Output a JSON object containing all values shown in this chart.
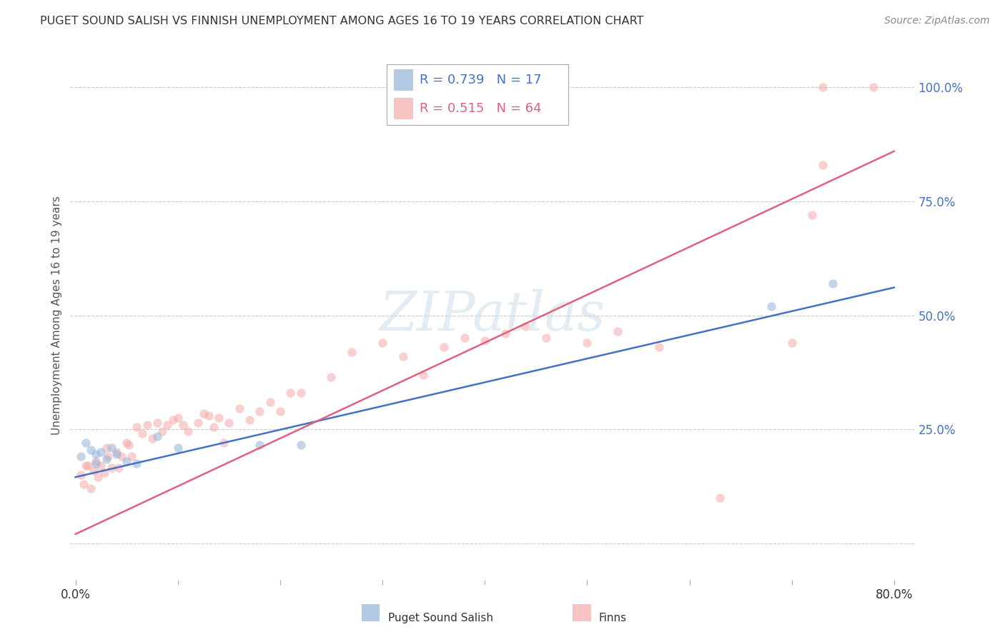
{
  "title": "PUGET SOUND SALISH VS FINNISH UNEMPLOYMENT AMONG AGES 16 TO 19 YEARS CORRELATION CHART",
  "source": "Source: ZipAtlas.com",
  "ylabel": "Unemployment Among Ages 16 to 19 years",
  "xlim": [
    -0.005,
    0.82
  ],
  "ylim": [
    -0.08,
    1.08
  ],
  "xticks": [
    0.0,
    0.1,
    0.2,
    0.3,
    0.4,
    0.5,
    0.6,
    0.7,
    0.8
  ],
  "xticklabels": [
    "0.0%",
    "",
    "",
    "",
    "",
    "",
    "",
    "",
    "80.0%"
  ],
  "yticks_right": [
    0.0,
    0.25,
    0.5,
    0.75,
    1.0
  ],
  "yticklabels_right": [
    "",
    "25.0%",
    "50.0%",
    "75.0%",
    "100.0%"
  ],
  "blue_color": "#92B4D8",
  "pink_color": "#F4AAAA",
  "blue_line_color": "#4472C4",
  "pink_line_color": "#E06080",
  "blue_label": "Puget Sound Salish",
  "pink_label": "Finns",
  "blue_R": 0.739,
  "blue_N": 17,
  "pink_R": 0.515,
  "pink_N": 64,
  "blue_slope": 0.52,
  "blue_intercept": 0.145,
  "pink_slope": 1.05,
  "pink_intercept": 0.02,
  "blue_x": [
    0.005,
    0.01,
    0.015,
    0.02,
    0.02,
    0.025,
    0.03,
    0.035,
    0.04,
    0.05,
    0.06,
    0.08,
    0.1,
    0.18,
    0.22,
    0.68,
    0.74
  ],
  "blue_y": [
    0.19,
    0.22,
    0.205,
    0.195,
    0.175,
    0.2,
    0.185,
    0.21,
    0.195,
    0.18,
    0.175,
    0.235,
    0.21,
    0.215,
    0.215,
    0.52,
    0.57
  ],
  "pink_x": [
    0.005,
    0.008,
    0.01,
    0.012,
    0.015,
    0.018,
    0.02,
    0.022,
    0.025,
    0.028,
    0.03,
    0.032,
    0.035,
    0.04,
    0.042,
    0.045,
    0.05,
    0.052,
    0.055,
    0.06,
    0.065,
    0.07,
    0.075,
    0.08,
    0.085,
    0.09,
    0.095,
    0.1,
    0.105,
    0.11,
    0.12,
    0.125,
    0.13,
    0.135,
    0.14,
    0.145,
    0.15,
    0.16,
    0.17,
    0.18,
    0.19,
    0.2,
    0.21,
    0.22,
    0.25,
    0.27,
    0.3,
    0.32,
    0.34,
    0.36,
    0.38,
    0.4,
    0.42,
    0.44,
    0.46,
    0.5,
    0.53,
    0.57,
    0.63,
    0.7,
    0.72,
    0.73,
    0.73,
    0.78
  ],
  "pink_y": [
    0.15,
    0.13,
    0.17,
    0.17,
    0.12,
    0.16,
    0.18,
    0.145,
    0.17,
    0.155,
    0.21,
    0.19,
    0.165,
    0.2,
    0.165,
    0.19,
    0.22,
    0.215,
    0.19,
    0.255,
    0.24,
    0.26,
    0.23,
    0.265,
    0.245,
    0.26,
    0.27,
    0.275,
    0.26,
    0.245,
    0.265,
    0.285,
    0.28,
    0.255,
    0.275,
    0.22,
    0.265,
    0.295,
    0.27,
    0.29,
    0.31,
    0.29,
    0.33,
    0.33,
    0.365,
    0.42,
    0.44,
    0.41,
    0.37,
    0.43,
    0.45,
    0.445,
    0.46,
    0.475,
    0.45,
    0.44,
    0.465,
    0.43,
    0.1,
    0.44,
    0.72,
    0.83,
    1.0,
    1.0
  ],
  "background_color": "#ffffff",
  "grid_color": "#cccccc",
  "marker_size": 80,
  "marker_alpha": 0.55,
  "line_width": 1.8
}
